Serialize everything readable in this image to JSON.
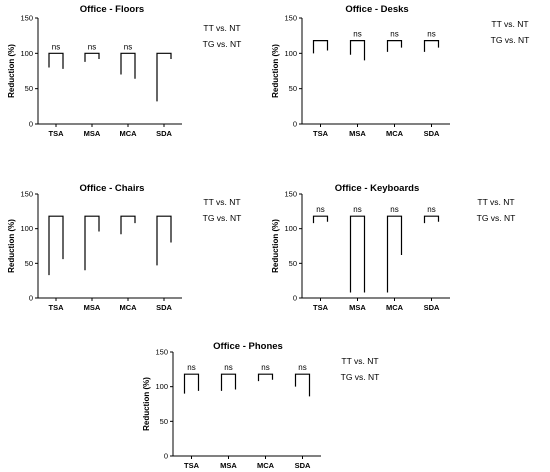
{
  "chart_data": [
    {
      "type": "bar",
      "title": "Office - Floors",
      "ylabel": "Reduction (%)",
      "yticks": [
        "0",
        "50",
        "100",
        "150"
      ],
      "ylim": [
        0,
        150
      ],
      "categories": [
        "TSA",
        "MSA",
        "MCA",
        "SDA"
      ],
      "series": [
        {
          "name": "TT vs. NT",
          "values": [
            80,
            88,
            70,
            32
          ]
        },
        {
          "name": "TG vs. NT",
          "values": [
            78,
            92,
            64,
            92
          ]
        }
      ],
      "bracket_top": [
        100,
        100,
        100,
        100
      ],
      "significance": [
        "ns",
        "ns",
        "ns",
        ""
      ],
      "legend": [
        "TT vs. NT",
        "TG vs. NT"
      ]
    },
    {
      "type": "bar",
      "title": "Office - Desks",
      "ylabel": "Reduction (%)",
      "yticks": [
        "0",
        "50",
        "100",
        "150"
      ],
      "ylim": [
        0,
        150
      ],
      "categories": [
        "TSA",
        "MSA",
        "MCA",
        "SDA"
      ],
      "series": [
        {
          "name": "TT vs. NT",
          "values": [
            100,
            98,
            102,
            102
          ]
        },
        {
          "name": "TG vs. NT",
          "values": [
            104,
            90,
            108,
            108
          ]
        }
      ],
      "bracket_top": [
        118,
        118,
        118,
        118
      ],
      "significance": [
        "",
        "ns",
        "ns",
        "ns"
      ],
      "legend": [
        "TT vs. NT",
        "TG vs. NT"
      ]
    },
    {
      "type": "bar",
      "title": "Office - Chairs",
      "ylabel": "Reduction (%)",
      "yticks": [
        "0",
        "50",
        "100",
        "150"
      ],
      "ylim": [
        0,
        150
      ],
      "categories": [
        "TSA",
        "MSA",
        "MCA",
        "SDA"
      ],
      "series": [
        {
          "name": "TT vs. NT",
          "values": [
            33,
            40,
            92,
            47
          ]
        },
        {
          "name": "TG vs. NT",
          "values": [
            56,
            96,
            108,
            80
          ]
        }
      ],
      "bracket_top": [
        118,
        118,
        118,
        118
      ],
      "significance": [
        "",
        "",
        "",
        ""
      ],
      "legend": [
        "TT vs. NT",
        "TG vs. NT"
      ]
    },
    {
      "type": "bar",
      "title": "Office - Keyboards",
      "ylabel": "Reduction (%)",
      "yticks": [
        "0",
        "50",
        "100",
        "150"
      ],
      "ylim": [
        0,
        150
      ],
      "categories": [
        "TSA",
        "MSA",
        "MCA",
        "SDA"
      ],
      "series": [
        {
          "name": "TT vs. NT",
          "values": [
            108,
            8,
            8,
            108
          ]
        },
        {
          "name": "TG vs. NT",
          "values": [
            110,
            8,
            62,
            110
          ]
        }
      ],
      "bracket_top": [
        118,
        118,
        118,
        118
      ],
      "significance": [
        "ns",
        "ns",
        "ns",
        "ns"
      ],
      "legend": [
        "TT vs. NT",
        "TG vs. NT"
      ]
    },
    {
      "type": "bar",
      "title": "Office - Phones",
      "ylabel": "Reduction (%)",
      "yticks": [
        "0",
        "50",
        "100",
        "150"
      ],
      "ylim": [
        0,
        150
      ],
      "categories": [
        "TSA",
        "MSA",
        "MCA",
        "SDA"
      ],
      "series": [
        {
          "name": "TT vs. NT",
          "values": [
            90,
            94,
            108,
            100
          ]
        },
        {
          "name": "TG vs. NT",
          "values": [
            94,
            96,
            110,
            86
          ]
        }
      ],
      "bracket_top": [
        118,
        118,
        118,
        118
      ],
      "significance": [
        "ns",
        "ns",
        "ns",
        "ns"
      ],
      "legend": [
        "TT vs. NT",
        "TG vs. NT"
      ]
    }
  ]
}
